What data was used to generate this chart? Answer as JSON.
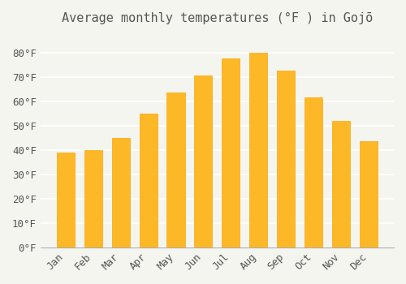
{
  "title": "Average monthly temperatures (°F ) in Gojō",
  "months": [
    "Jan",
    "Feb",
    "Mar",
    "Apr",
    "May",
    "Jun",
    "Jul",
    "Aug",
    "Sep",
    "Oct",
    "Nov",
    "Dec"
  ],
  "values": [
    39,
    40,
    45,
    55,
    63.5,
    70.5,
    77.5,
    80,
    72.5,
    61.5,
    52,
    43.5
  ],
  "bar_color": "#FDB827",
  "bar_edge_color": "#FFA500",
  "background_color": "#f5f5f0",
  "grid_color": "#ffffff",
  "text_color": "#555555",
  "ylim": [
    0,
    88
  ],
  "yticks": [
    0,
    10,
    20,
    30,
    40,
    50,
    60,
    70,
    80
  ],
  "title_fontsize": 11,
  "tick_fontsize": 9
}
